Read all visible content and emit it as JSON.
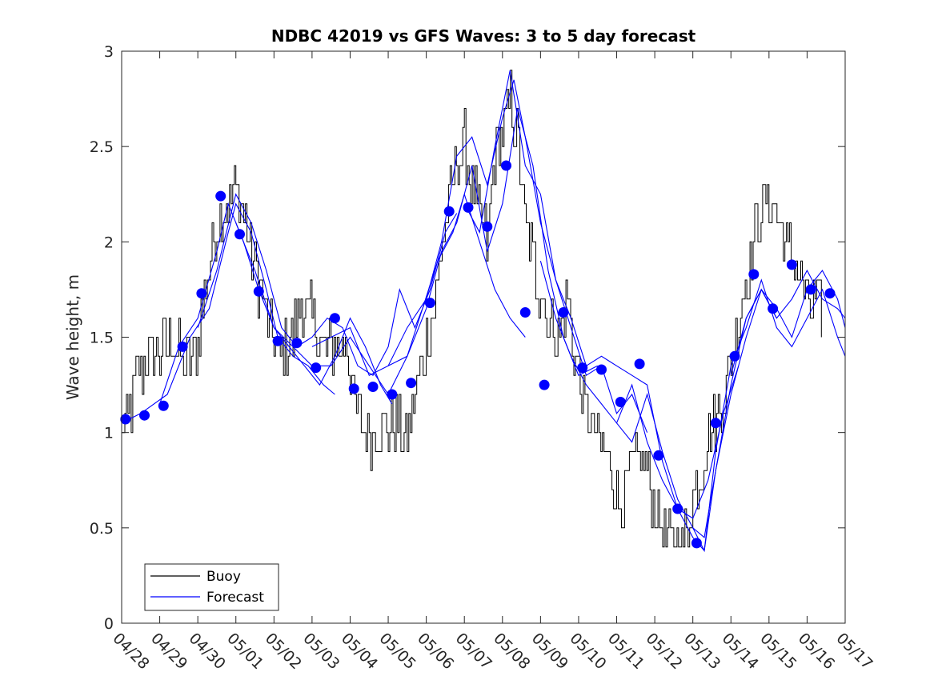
{
  "chart_data": {
    "type": "line",
    "title": "NDBC 42019 vs GFS Waves: 3 to 5 day forecast",
    "xlabel": "",
    "ylabel": "Wave height, m",
    "x_ticks": [
      "04/28",
      "04/29",
      "04/30",
      "05/01",
      "05/02",
      "05/03",
      "05/04",
      "05/05",
      "05/06",
      "05/07",
      "05/08",
      "05/09",
      "05/10",
      "05/11",
      "05/12",
      "05/13",
      "05/14",
      "05/15",
      "05/16",
      "05/17"
    ],
    "y_ticks": [
      "0",
      "0.5",
      "1",
      "1.5",
      "2",
      "2.5",
      "3"
    ],
    "xlim": [
      "04/28",
      "05/17"
    ],
    "ylim": [
      0,
      3
    ],
    "grid": false,
    "legend": {
      "position": "bottom-left",
      "entries": [
        "Buoy",
        "Forecast"
      ]
    },
    "colors": {
      "buoy": "#000000",
      "forecast": "#0000ff",
      "markers": "#0000ff"
    },
    "buoy_anchors": [
      {
        "x": 0.0,
        "y": 1.0
      },
      {
        "x": 0.2,
        "y": 1.1
      },
      {
        "x": 0.4,
        "y": 1.3
      },
      {
        "x": 0.7,
        "y": 1.4
      },
      {
        "x": 1.0,
        "y": 1.4
      },
      {
        "x": 1.3,
        "y": 1.5
      },
      {
        "x": 1.6,
        "y": 1.35
      },
      {
        "x": 1.9,
        "y": 1.4
      },
      {
        "x": 2.2,
        "y": 1.75
      },
      {
        "x": 2.5,
        "y": 2.1
      },
      {
        "x": 2.8,
        "y": 2.2
      },
      {
        "x": 3.0,
        "y": 2.3
      },
      {
        "x": 3.2,
        "y": 2.15
      },
      {
        "x": 3.4,
        "y": 1.95
      },
      {
        "x": 3.7,
        "y": 1.7
      },
      {
        "x": 3.9,
        "y": 1.5
      },
      {
        "x": 4.2,
        "y": 1.4
      },
      {
        "x": 4.5,
        "y": 1.5
      },
      {
        "x": 4.7,
        "y": 1.7
      },
      {
        "x": 5.0,
        "y": 1.6
      },
      {
        "x": 5.3,
        "y": 1.4
      },
      {
        "x": 5.6,
        "y": 1.45
      },
      {
        "x": 5.9,
        "y": 1.5
      },
      {
        "x": 6.1,
        "y": 1.15
      },
      {
        "x": 6.4,
        "y": 1.0
      },
      {
        "x": 6.8,
        "y": 1.0
      },
      {
        "x": 7.2,
        "y": 1.05
      },
      {
        "x": 7.5,
        "y": 0.95
      },
      {
        "x": 7.8,
        "y": 1.3
      },
      {
        "x": 8.2,
        "y": 1.65
      },
      {
        "x": 8.5,
        "y": 2.1
      },
      {
        "x": 8.8,
        "y": 2.45
      },
      {
        "x": 9.0,
        "y": 2.5
      },
      {
        "x": 9.3,
        "y": 2.2
      },
      {
        "x": 9.6,
        "y": 2.0
      },
      {
        "x": 9.8,
        "y": 2.45
      },
      {
        "x": 10.0,
        "y": 2.6
      },
      {
        "x": 10.2,
        "y": 2.75
      },
      {
        "x": 10.4,
        "y": 2.55
      },
      {
        "x": 10.6,
        "y": 2.1
      },
      {
        "x": 10.9,
        "y": 1.8
      },
      {
        "x": 11.2,
        "y": 1.6
      },
      {
        "x": 11.5,
        "y": 1.5
      },
      {
        "x": 11.7,
        "y": 1.7
      },
      {
        "x": 11.9,
        "y": 1.4
      },
      {
        "x": 12.2,
        "y": 1.1
      },
      {
        "x": 12.5,
        "y": 0.95
      },
      {
        "x": 12.8,
        "y": 0.85
      },
      {
        "x": 13.1,
        "y": 0.6
      },
      {
        "x": 13.3,
        "y": 0.75
      },
      {
        "x": 13.6,
        "y": 0.9
      },
      {
        "x": 13.9,
        "y": 0.7
      },
      {
        "x": 14.2,
        "y": 0.5
      },
      {
        "x": 14.5,
        "y": 0.4
      },
      {
        "x": 14.8,
        "y": 0.45
      },
      {
        "x": 15.1,
        "y": 0.75
      },
      {
        "x": 15.4,
        "y": 0.95
      },
      {
        "x": 15.6,
        "y": 1.05
      },
      {
        "x": 15.9,
        "y": 1.25
      },
      {
        "x": 16.2,
        "y": 1.6
      },
      {
        "x": 16.5,
        "y": 1.9
      },
      {
        "x": 16.8,
        "y": 2.2
      },
      {
        "x": 17.1,
        "y": 2.2
      },
      {
        "x": 17.4,
        "y": 2.0
      },
      {
        "x": 17.7,
        "y": 1.9
      },
      {
        "x": 18.0,
        "y": 1.7
      },
      {
        "x": 18.2,
        "y": 1.65
      },
      {
        "x": 18.4,
        "y": 1.6
      }
    ],
    "forecast_series": [
      {
        "x": [
          0.0,
          0.5,
          1.2,
          1.8,
          2.3,
          2.8,
          3.0,
          3.4,
          3.8,
          4.1,
          4.5,
          4.9,
          5.3,
          5.6
        ],
        "y": [
          1.05,
          1.1,
          1.2,
          1.5,
          1.65,
          2.05,
          2.2,
          2.05,
          1.75,
          1.5,
          1.4,
          1.35,
          1.25,
          1.2
        ]
      },
      {
        "x": [
          1.0,
          1.5,
          2.0,
          2.5,
          2.8,
          3.2,
          3.6,
          4.0,
          4.4,
          4.8,
          5.2,
          5.6,
          6.0,
          6.4,
          6.8,
          7.1
        ],
        "y": [
          1.15,
          1.45,
          1.6,
          1.95,
          2.2,
          2.0,
          1.75,
          1.55,
          1.45,
          1.35,
          1.25,
          1.4,
          1.6,
          1.45,
          1.25,
          1.15
        ]
      },
      {
        "x": [
          2.0,
          2.5,
          3.0,
          3.4,
          3.8,
          4.2,
          4.6,
          5.0,
          5.4,
          5.8,
          6.2,
          6.6,
          7.0,
          7.3,
          7.7,
          8.1,
          8.5,
          8.8
        ],
        "y": [
          1.55,
          1.85,
          2.25,
          2.1,
          1.85,
          1.55,
          1.45,
          1.5,
          1.6,
          1.55,
          1.35,
          1.3,
          1.45,
          1.75,
          1.55,
          1.75,
          2.05,
          2.15
        ]
      },
      {
        "x": [
          3.0,
          3.5,
          4.0,
          4.5,
          5.0,
          5.5,
          6.0,
          6.5,
          7.0,
          7.5,
          7.9,
          8.3,
          8.7,
          9.0,
          9.4,
          9.8,
          10.2,
          10.6
        ],
        "y": [
          2.1,
          1.85,
          1.55,
          1.45,
          1.35,
          1.35,
          1.5,
          1.35,
          1.2,
          1.4,
          1.65,
          1.9,
          2.05,
          2.25,
          2.0,
          1.75,
          1.6,
          1.5
        ]
      },
      {
        "x": [
          5.0,
          5.5,
          6.0,
          6.5,
          7.0,
          7.5,
          8.0,
          8.4,
          8.8,
          9.2,
          9.6,
          10.0,
          10.4,
          10.8,
          11.2,
          11.6,
          12.0,
          12.5
        ],
        "y": [
          1.45,
          1.5,
          1.55,
          1.3,
          1.35,
          1.4,
          1.65,
          1.95,
          2.1,
          2.4,
          1.95,
          2.2,
          2.7,
          2.4,
          1.85,
          1.5,
          1.3,
          1.35
        ]
      },
      {
        "x": [
          7.0,
          7.5,
          8.0,
          8.4,
          8.8,
          9.2,
          9.6,
          10.0,
          10.3,
          10.6,
          11.0,
          11.4,
          11.8,
          12.2,
          12.6,
          13.0,
          13.4,
          13.8
        ],
        "y": [
          1.35,
          1.55,
          1.7,
          2.0,
          2.45,
          2.55,
          2.3,
          2.65,
          2.85,
          2.55,
          2.1,
          1.8,
          1.55,
          1.3,
          1.35,
          1.1,
          1.2,
          1.0
        ]
      },
      {
        "x": [
          9.0,
          9.4,
          9.8,
          10.2,
          10.6,
          11.0,
          11.4,
          11.8,
          12.2,
          12.6,
          13.0,
          13.4,
          13.8,
          14.2,
          14.6,
          15.0,
          15.4,
          15.8,
          16.2
        ],
        "y": [
          2.2,
          2.05,
          2.5,
          2.9,
          2.4,
          2.25,
          1.8,
          1.6,
          1.35,
          1.4,
          1.35,
          1.3,
          1.25,
          0.85,
          0.6,
          0.55,
          0.75,
          1.1,
          1.35
        ]
      },
      {
        "x": [
          11.0,
          11.4,
          11.8,
          12.2,
          12.6,
          13.0,
          13.4,
          13.8,
          14.2,
          14.6,
          15.0,
          15.3,
          15.6,
          16.0,
          16.4,
          16.8,
          17.2
        ],
        "y": [
          1.9,
          1.6,
          1.4,
          1.25,
          1.15,
          1.05,
          0.95,
          1.2,
          0.9,
          0.65,
          0.5,
          0.45,
          0.8,
          1.2,
          1.5,
          1.75,
          1.6
        ]
      },
      {
        "x": [
          13.0,
          13.4,
          13.8,
          14.2,
          14.6,
          15.0,
          15.3,
          15.6,
          16.0,
          16.4,
          16.8,
          17.2,
          17.6,
          18.0,
          18.4,
          18.8,
          19.0
        ],
        "y": [
          1.05,
          1.25,
          0.95,
          0.75,
          0.6,
          0.45,
          0.38,
          0.8,
          1.25,
          1.6,
          1.75,
          1.65,
          1.5,
          1.75,
          1.85,
          1.7,
          1.55
        ]
      },
      {
        "x": [
          15.0,
          15.3,
          15.6,
          16.0,
          16.4,
          16.8,
          17.2,
          17.6,
          18.0,
          18.4,
          18.8,
          19.0
        ],
        "y": [
          0.5,
          0.38,
          0.9,
          1.35,
          1.55,
          1.8,
          1.55,
          1.45,
          1.6,
          1.75,
          1.5,
          1.4
        ]
      },
      {
        "x": [
          16.0,
          16.4,
          16.8,
          17.2,
          17.6,
          18.0,
          18.4,
          18.8,
          19.0
        ],
        "y": [
          1.3,
          1.6,
          1.75,
          1.6,
          1.7,
          1.85,
          1.7,
          1.65,
          1.6
        ]
      }
    ],
    "forecast_markers": {
      "x": [
        0.1,
        0.6,
        1.1,
        1.6,
        2.1,
        2.6,
        3.1,
        3.6,
        4.1,
        4.6,
        5.1,
        5.6,
        6.1,
        6.6,
        7.1,
        7.6,
        8.1,
        8.6,
        9.1,
        9.6,
        10.1,
        10.6,
        11.1,
        11.6,
        12.1,
        12.6,
        13.1,
        13.6,
        14.1,
        14.6,
        15.1,
        15.6,
        16.1,
        16.6,
        17.1,
        17.6,
        18.1,
        18.6
      ],
      "y": [
        1.07,
        1.09,
        1.14,
        1.45,
        1.73,
        2.24,
        2.04,
        1.74,
        1.48,
        1.47,
        1.34,
        1.6,
        1.23,
        1.24,
        1.2,
        1.26,
        1.68,
        2.16,
        2.18,
        2.08,
        2.4,
        1.63,
        1.25,
        1.63,
        1.34,
        1.33,
        1.16,
        1.36,
        0.88,
        0.6,
        0.42,
        1.05,
        1.4,
        1.83,
        1.65,
        1.88,
        1.75,
        1.73
      ]
    }
  }
}
